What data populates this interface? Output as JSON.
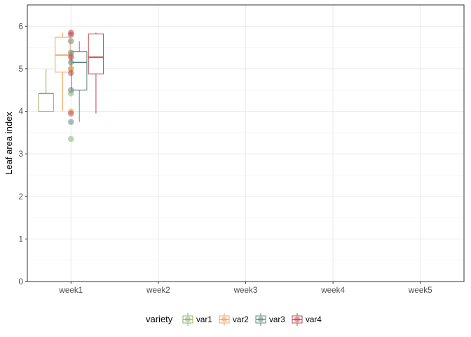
{
  "chart_data": {
    "type": "box",
    "ylabel": "Leaf area index",
    "xlabel": "",
    "categories": [
      "week1",
      "week2",
      "week3",
      "week4",
      "week5"
    ],
    "ylim": [
      0,
      6.5
    ],
    "yticks": [
      0,
      1,
      2,
      3,
      4,
      5,
      6
    ],
    "grid": true,
    "legend": {
      "title": "variety",
      "position": "bottom"
    },
    "series": [
      {
        "name": "var1",
        "color": "#8FB26B",
        "boxes": [
          {
            "category": "week1",
            "min": 4.0,
            "q1": 4.0,
            "median": 4.42,
            "q3": 4.42,
            "max": 5.0
          }
        ],
        "points": [
          {
            "category": "week1",
            "y": 5.0
          },
          {
            "category": "week1",
            "y": 4.42
          },
          {
            "category": "week1",
            "y": 3.35
          }
        ]
      },
      {
        "name": "var2",
        "color": "#F0A35A",
        "boxes": [
          {
            "category": "week1",
            "min": 4.0,
            "q1": 4.92,
            "median": 5.32,
            "q3": 5.74,
            "max": 5.85
          }
        ],
        "points": [
          {
            "category": "week1",
            "y": 5.32
          },
          {
            "category": "week1",
            "y": 5.0
          },
          {
            "category": "week1",
            "y": 4.0
          }
        ]
      },
      {
        "name": "var3",
        "color": "#5E8B7E",
        "boxes": [
          {
            "category": "week1",
            "min": 3.75,
            "q1": 4.5,
            "median": 5.15,
            "q3": 5.4,
            "max": 5.65
          }
        ],
        "points": [
          {
            "category": "week1",
            "y": 5.65
          },
          {
            "category": "week1",
            "y": 5.38
          },
          {
            "category": "week1",
            "y": 5.15
          },
          {
            "category": "week1",
            "y": 4.5
          },
          {
            "category": "week1",
            "y": 3.75
          }
        ]
      },
      {
        "name": "var4",
        "color": "#C0444F",
        "boxes": [
          {
            "category": "week1",
            "min": 3.95,
            "q1": 4.88,
            "median": 5.27,
            "q3": 5.82,
            "max": 5.85
          }
        ],
        "points": [
          {
            "category": "week1",
            "y": 5.85
          },
          {
            "category": "week1",
            "y": 5.8
          },
          {
            "category": "week1",
            "y": 5.27
          },
          {
            "category": "week1",
            "y": 4.9
          },
          {
            "category": "week1",
            "y": 3.95
          }
        ]
      }
    ]
  }
}
